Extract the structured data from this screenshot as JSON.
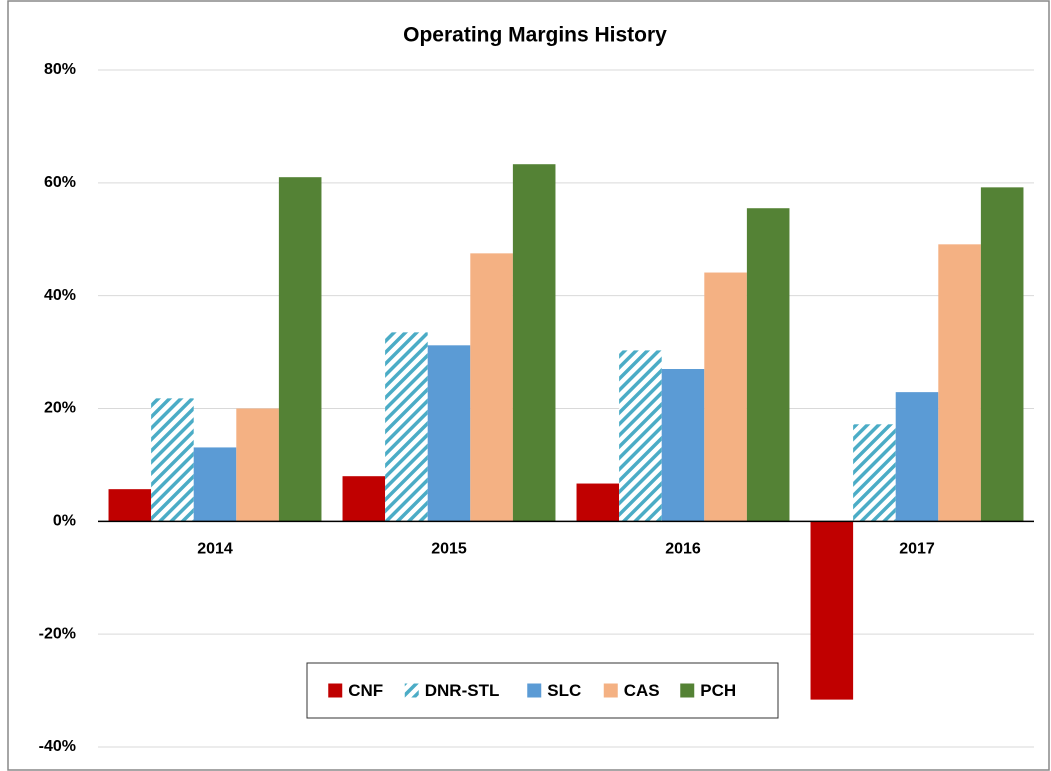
{
  "chart_data": {
    "type": "bar",
    "title": "Operating Margins History",
    "categories": [
      "2014",
      "2015",
      "2016",
      "2017"
    ],
    "series": [
      {
        "name": "CNF",
        "color": "#c00000",
        "values": [
          5.7,
          8,
          6.7,
          -31.6
        ]
      },
      {
        "name": "DNR-STL",
        "color": "#4bacc6",
        "hatch": true,
        "values": [
          21.8,
          33.5,
          30.3,
          17.2
        ]
      },
      {
        "name": "SLC",
        "color": "#5b9bd5",
        "values": [
          13.1,
          31.2,
          27,
          22.9
        ]
      },
      {
        "name": "CAS",
        "color": "#f4b183",
        "values": [
          20,
          47.5,
          44.1,
          49.1
        ]
      },
      {
        "name": "PCH",
        "color": "#548235",
        "values": [
          61,
          63.3,
          55.5,
          59.2
        ]
      }
    ],
    "ylim": [
      -40,
      80
    ],
    "yticks": [
      {
        "value": -40,
        "label": "-40%"
      },
      {
        "value": -20,
        "label": "-20%"
      },
      {
        "value": 0,
        "label": "0%"
      },
      {
        "value": 20,
        "label": "20%"
      },
      {
        "value": 40,
        "label": "40%"
      },
      {
        "value": 60,
        "label": "60%"
      },
      {
        "value": 80,
        "label": "80%"
      }
    ],
    "grid": true,
    "legend": "bottom"
  }
}
